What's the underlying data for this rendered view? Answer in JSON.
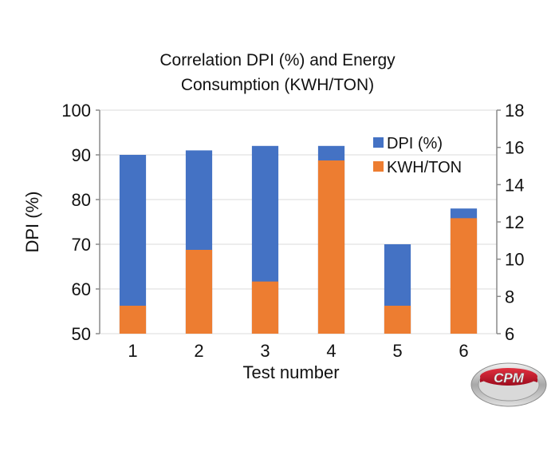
{
  "chart_data": {
    "type": "bar",
    "stacked_overlay": true,
    "title": [
      "Correlation DPI (%) and Energy",
      "Consumption (KWH/TON)"
    ],
    "xlabel": "Test number",
    "ylabel": "DPI (%)",
    "y2label": "",
    "categories": [
      "1",
      "2",
      "3",
      "4",
      "5",
      "6"
    ],
    "series": [
      {
        "name": "DPI (%)",
        "axis": "left",
        "color": "#4472C4",
        "values": [
          90,
          91,
          92,
          92,
          70,
          78
        ]
      },
      {
        "name": "KWH/TON",
        "axis": "right",
        "color": "#ED7D31",
        "values": [
          7.5,
          10.5,
          8.8,
          15.3,
          7.5,
          12.2
        ]
      }
    ],
    "ylim": [
      50,
      100
    ],
    "yticks": [
      50,
      60,
      70,
      80,
      90,
      100
    ],
    "y2lim": [
      6,
      18
    ],
    "y2ticks": [
      6,
      8,
      10,
      12,
      14,
      16,
      18
    ],
    "grid": true,
    "legend_position": "top-right"
  },
  "logo": {
    "text": "CPM",
    "colors": {
      "red": "#C8102E",
      "silver": "#BFBFBF"
    }
  }
}
